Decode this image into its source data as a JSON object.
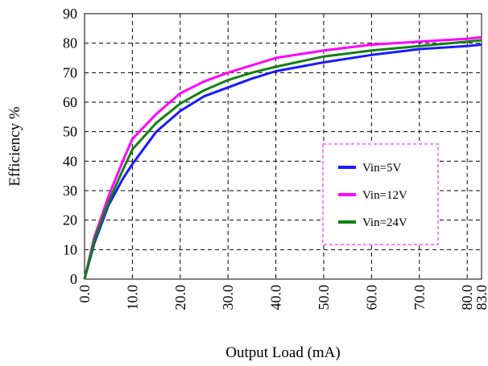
{
  "chart_data": {
    "type": "line",
    "title": "",
    "xlabel": "Output Load (mA)",
    "ylabel": "Efficiency %",
    "x_ticks": [
      "0.0",
      "10.0",
      "20.0",
      "30.0",
      "40.0",
      "50.0",
      "60.0",
      "70.0",
      "80.0",
      "83.0"
    ],
    "y_ticks": [
      "0",
      "10",
      "20",
      "30",
      "40",
      "50",
      "60",
      "70",
      "80",
      "90"
    ],
    "ylim": [
      0,
      90
    ],
    "grid": true,
    "legend_position": "right-middle",
    "series": [
      {
        "name": "Vin=5V",
        "color": "#1a1aff",
        "points": [
          [
            0,
            0
          ],
          [
            2,
            12
          ],
          [
            5,
            25
          ],
          [
            8,
            34
          ],
          [
            10,
            39
          ],
          [
            15,
            50
          ],
          [
            20,
            57
          ],
          [
            25,
            62
          ],
          [
            30,
            65
          ],
          [
            35,
            68
          ],
          [
            40,
            70.5
          ],
          [
            50,
            73.5
          ],
          [
            60,
            76
          ],
          [
            70,
            78
          ],
          [
            80,
            79
          ],
          [
            83,
            79.5
          ]
        ]
      },
      {
        "name": "Vin=12V",
        "color": "#ff00ff",
        "points": [
          [
            0,
            0
          ],
          [
            2,
            14
          ],
          [
            5,
            28
          ],
          [
            8,
            40
          ],
          [
            10,
            47.5
          ],
          [
            15,
            56
          ],
          [
            20,
            63
          ],
          [
            25,
            67
          ],
          [
            30,
            70
          ],
          [
            35,
            72.5
          ],
          [
            40,
            75
          ],
          [
            50,
            77.5
          ],
          [
            60,
            79.5
          ],
          [
            70,
            80.5
          ],
          [
            80,
            81.5
          ],
          [
            83,
            82
          ]
        ]
      },
      {
        "name": "Vin=24V",
        "color": "#138013",
        "points": [
          [
            0,
            0
          ],
          [
            2,
            13
          ],
          [
            5,
            26
          ],
          [
            8,
            37
          ],
          [
            10,
            44
          ],
          [
            15,
            53
          ],
          [
            20,
            59.5
          ],
          [
            25,
            64
          ],
          [
            30,
            67.5
          ],
          [
            35,
            70
          ],
          [
            40,
            72
          ],
          [
            50,
            75.5
          ],
          [
            60,
            77.5
          ],
          [
            70,
            79
          ],
          [
            80,
            80.5
          ],
          [
            83,
            81
          ]
        ]
      }
    ]
  }
}
